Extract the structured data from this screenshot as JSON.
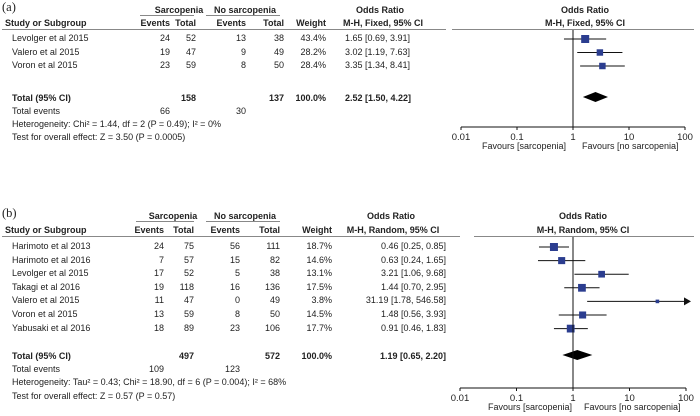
{
  "chart_data": [
    {
      "type": "forest",
      "panel_label": "(a)",
      "group1": "Sarcopenia",
      "group2": "No sarcopenia",
      "columns": {
        "study": "Study or Subgroup",
        "events1": "Events",
        "total1": "Total",
        "events2": "Events",
        "total2": "Total",
        "weight": "Weight"
      },
      "or_title": "Odds Ratio",
      "method": "M-H, Fixed, 95% CI",
      "studies": [
        {
          "name": "Levolger et al 2015",
          "events1": "24",
          "total1": "52",
          "events2": "13",
          "total2": "38",
          "weight": "43.4%",
          "or": 1.65,
          "lo": 0.69,
          "hi": 3.91,
          "ci": "1.65 [0.69, 3.91]"
        },
        {
          "name": "Valero et al 2015",
          "events1": "19",
          "total1": "47",
          "events2": "9",
          "total2": "49",
          "weight": "28.2%",
          "or": 3.02,
          "lo": 1.19,
          "hi": 7.63,
          "ci": "3.02 [1.19, 7.63]"
        },
        {
          "name": "Voron et al 2015",
          "events1": "23",
          "total1": "59",
          "events2": "8",
          "total2": "50",
          "weight": "28.4%",
          "or": 3.35,
          "lo": 1.34,
          "hi": 8.41,
          "ci": "3.35 [1.34, 8.41]"
        }
      ],
      "total": {
        "label": "Total (95% CI)",
        "total1": "158",
        "total2": "137",
        "weight": "100.0%",
        "or": 2.52,
        "lo": 1.5,
        "hi": 4.22,
        "ci": "2.52 [1.50, 4.22]"
      },
      "total_events": {
        "label": "Total events",
        "events1": "66",
        "events2": "30"
      },
      "heterogeneity": "Heterogeneity: Chi² = 1.44, df = 2 (P = 0.49); I² = 0%",
      "overall_effect": "Test for overall effect: Z = 3.50 (P = 0.0005)",
      "x_scale": "log",
      "xlim": [
        0.01,
        100
      ],
      "ticks": [
        "0.01",
        "0.1",
        "1",
        "10",
        "100"
      ],
      "tick_values": [
        0.01,
        0.1,
        1,
        10,
        100
      ],
      "favours_left": "Favours [sarcopenia]",
      "favours_right": "Favours [no sarcopenia]"
    },
    {
      "type": "forest",
      "panel_label": "(b)",
      "group1": "Sarcopenia",
      "group2": "No sarcopenia",
      "columns": {
        "study": "Study or Subgroup",
        "events1": "Events",
        "total1": "Total",
        "events2": "Events",
        "total2": "Total",
        "weight": "Weight"
      },
      "or_title": "Odds Ratio",
      "method": "M-H, Random, 95% CI",
      "studies": [
        {
          "name": "Harimoto et al 2013",
          "events1": "24",
          "total1": "75",
          "events2": "56",
          "total2": "111",
          "weight": "18.7%",
          "or": 0.46,
          "lo": 0.25,
          "hi": 0.85,
          "ci": "0.46 [0.25, 0.85]"
        },
        {
          "name": "Harimoto et al 2016",
          "events1": "7",
          "total1": "57",
          "events2": "15",
          "total2": "82",
          "weight": "14.6%",
          "or": 0.63,
          "lo": 0.24,
          "hi": 1.65,
          "ci": "0.63 [0.24, 1.65]"
        },
        {
          "name": "Levolger et al 2015",
          "events1": "17",
          "total1": "52",
          "events2": "5",
          "total2": "38",
          "weight": "13.1%",
          "or": 3.21,
          "lo": 1.06,
          "hi": 9.68,
          "ci": "3.21 [1.06, 9.68]"
        },
        {
          "name": "Takagi et al 2016",
          "events1": "19",
          "total1": "118",
          "events2": "16",
          "total2": "136",
          "weight": "17.5%",
          "or": 1.44,
          "lo": 0.7,
          "hi": 2.95,
          "ci": "1.44 [0.70, 2.95]"
        },
        {
          "name": "Valero et al 2015",
          "events1": "11",
          "total1": "47",
          "events2": "0",
          "total2": "49",
          "weight": "3.8%",
          "or": 31.19,
          "lo": 1.78,
          "hi": 546.58,
          "ci": "31.19 [1.78, 546.58]"
        },
        {
          "name": "Voron et al 2015",
          "events1": "13",
          "total1": "59",
          "events2": "8",
          "total2": "50",
          "weight": "14.5%",
          "or": 1.48,
          "lo": 0.56,
          "hi": 3.93,
          "ci": "1.48 [0.56, 3.93]"
        },
        {
          "name": "Yabusaki et al 2016",
          "events1": "18",
          "total1": "89",
          "events2": "23",
          "total2": "106",
          "weight": "17.7%",
          "or": 0.91,
          "lo": 0.46,
          "hi": 1.83,
          "ci": "0.91 [0.46, 1.83]"
        }
      ],
      "total": {
        "label": "Total (95% CI)",
        "total1": "497",
        "total2": "572",
        "weight": "100.0%",
        "or": 1.19,
        "lo": 0.65,
        "hi": 2.2,
        "ci": "1.19 [0.65, 2.20]"
      },
      "total_events": {
        "label": "Total events",
        "events1": "109",
        "events2": "123"
      },
      "heterogeneity": "Heterogeneity: Tau² = 0.43; Chi² = 18.90, df = 6 (P = 0.004); I² = 68%",
      "overall_effect": "Test for overall effect: Z = 0.57 (P = 0.57)",
      "x_scale": "log",
      "xlim": [
        0.01,
        100
      ],
      "ticks": [
        "0.01",
        "0.1",
        "1",
        "10",
        "100"
      ],
      "tick_values": [
        0.01,
        0.1,
        1,
        10,
        100
      ],
      "favours_left": "Favours [sarcopenia]",
      "favours_right": "Favours [no sarcopenia]"
    }
  ],
  "colors": {
    "marker": "#2b3d8f",
    "line": "#111111",
    "diamond": "#000000",
    "rule": "#888888"
  }
}
